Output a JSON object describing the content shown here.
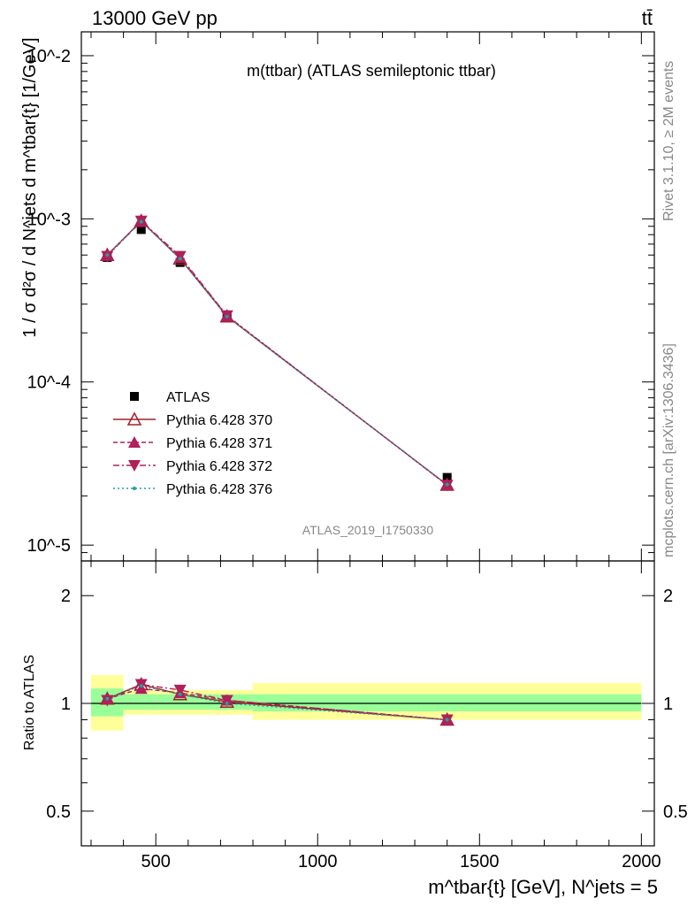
{
  "header": {
    "energy_label": "13000 GeV pp",
    "process_label": "tt̄",
    "side_rivet": "Rivet 3.1.10, ≥ 2M events",
    "side_mcplots": "mcplots.cern.ch [arXiv:1306.3436]",
    "analysis_id": "ATLAS_2019_I1750330"
  },
  "colors": {
    "data": "#000000",
    "p370": "#a0202a",
    "p371": "#b0205a",
    "p372": "#b0205a",
    "p376": "#20a0a0",
    "band_inner": "#99ff99",
    "band_outer": "#ffff99"
  },
  "chart_data": [
    {
      "type": "line",
      "title": "m(ttbar) (ATLAS semileptonic ttbar)",
      "ylabel": "1 / σ d²σ / d N^jets d m^tbar{t} [1/GeV]",
      "xlabel": "m^tbar{t} [GeV], N^jets = 5",
      "xlim": [
        270,
        2040
      ],
      "ylim": [
        8e-06,
        0.014
      ],
      "y_scale": "log",
      "y_tick_labels": [
        "10^-5",
        "10^-4",
        "10^-3",
        "10^-2"
      ],
      "legend_position": "bottom-left",
      "x": [
        350,
        455,
        575,
        720,
        1400
      ],
      "x_bins": [
        [
          300,
          400
        ],
        [
          400,
          510
        ],
        [
          510,
          640
        ],
        [
          640,
          800
        ],
        [
          800,
          2000
        ]
      ],
      "series": [
        {
          "name": "ATLAS",
          "marker": "square",
          "values": [
            0.00058,
            0.00086,
            0.00054,
            0.00025,
            2.6e-05
          ]
        },
        {
          "name": "Pythia 6.428 370",
          "marker": "open-triangle",
          "values": [
            0.0006,
            0.00097,
            0.00057,
            0.000252,
            2.34e-05
          ]
        },
        {
          "name": "Pythia 6.428 371",
          "marker": "triangle",
          "values": [
            0.0006,
            0.00096,
            0.00058,
            0.000254,
            2.34e-05
          ]
        },
        {
          "name": "Pythia 6.428 372",
          "marker": "down-triangle",
          "values": [
            0.00059,
            0.00097,
            0.00059,
            0.000255,
            2.33e-05
          ]
        },
        {
          "name": "Pythia 6.428 376",
          "marker": "dot",
          "values": [
            0.0006,
            0.00096,
            0.00057,
            0.000252,
            2.35e-05
          ]
        }
      ]
    },
    {
      "type": "line",
      "ylabel": "Ratio to ATLAS",
      "xlim": [
        270,
        2040
      ],
      "ylim": [
        0.4,
        2.5
      ],
      "y_scale": "log",
      "x_tick_labels": [
        "500",
        "1000",
        "1500",
        "2000"
      ],
      "y_tick_labels": [
        "0.5",
        "1",
        "2"
      ],
      "x": [
        350,
        455,
        575,
        720,
        1400
      ],
      "band_inner": [
        [
          0.92,
          1.1
        ],
        [
          0.96,
          1.06
        ],
        [
          0.96,
          1.06
        ],
        [
          0.96,
          1.06
        ],
        [
          0.95,
          1.06
        ]
      ],
      "band_outer": [
        [
          0.84,
          1.2
        ],
        [
          0.93,
          1.09
        ],
        [
          0.93,
          1.09
        ],
        [
          0.93,
          1.09
        ],
        [
          0.9,
          1.14
        ]
      ],
      "series": [
        {
          "name": "Pythia 6.428 370",
          "values": [
            1.03,
            1.13,
            1.06,
            1.01,
            0.9
          ]
        },
        {
          "name": "Pythia 6.428 371",
          "values": [
            1.03,
            1.1,
            1.07,
            1.02,
            0.9
          ]
        },
        {
          "name": "Pythia 6.428 372",
          "values": [
            1.02,
            1.13,
            1.09,
            1.02,
            0.9
          ]
        },
        {
          "name": "Pythia 6.428 376",
          "values": [
            1.03,
            1.12,
            1.06,
            1.0,
            0.9
          ]
        }
      ]
    }
  ]
}
